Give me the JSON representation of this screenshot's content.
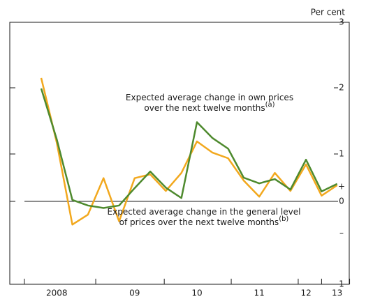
{
  "chart_data": {
    "type": "line",
    "y_axis_label": "Per cent",
    "categories": [
      null,
      "2008",
      null,
      null,
      null,
      null,
      "09",
      null,
      null,
      null,
      "10",
      null,
      null,
      null,
      "11",
      null,
      null,
      "12",
      null,
      "13"
    ],
    "series": [
      {
        "name": "Expected average change in own prices",
        "color": "#4e8a2e",
        "values": [
          1.99,
          1.22,
          0.03,
          -0.05,
          -0.08,
          -0.05,
          0.28,
          0.63,
          0.29,
          0.07,
          1.48,
          1.24,
          1.08,
          0.5,
          0.38,
          0.47,
          0.25,
          0.88,
          0.21,
          0.37
        ]
      },
      {
        "name": "Expected average change in the general level of prices",
        "color": "#f2a81d",
        "values": [
          2.15,
          1.17,
          -0.28,
          -0.16,
          0.49,
          -0.24,
          0.49,
          0.57,
          0.22,
          0.6,
          1.19,
          1.02,
          0.91,
          0.44,
          0.1,
          0.6,
          0.22,
          0.78,
          0.12,
          0.34
        ]
      }
    ],
    "annotations": [
      {
        "lines": [
          "Expected average change in own prices",
          "over the next twelve months"
        ],
        "note": "(a)"
      },
      {
        "lines": [
          "Expected average change in the general level",
          "of prices over the next twelve months"
        ],
        "note": "(b)"
      }
    ],
    "sign_labels": [
      "+",
      "–"
    ],
    "ylim": [
      -1,
      3
    ],
    "yticks": [
      {
        "value": -1,
        "label": "1"
      },
      0,
      1,
      2,
      3
    ],
    "zero_line": true
  }
}
